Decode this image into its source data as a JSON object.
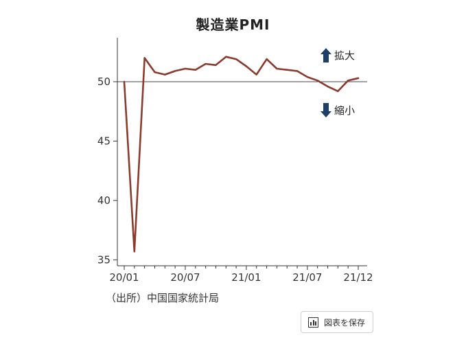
{
  "chart_data": {
    "type": "line",
    "title": "製造業PMI",
    "x": [
      "20/01",
      "20/02",
      "20/03",
      "20/04",
      "20/05",
      "20/06",
      "20/07",
      "20/08",
      "20/09",
      "20/10",
      "20/11",
      "20/12",
      "21/01",
      "21/02",
      "21/03",
      "21/04",
      "21/05",
      "21/06",
      "21/07",
      "21/08",
      "21/09",
      "21/10",
      "21/11",
      "21/12"
    ],
    "series": [
      {
        "values": [
          50.0,
          35.7,
          52.0,
          50.8,
          50.6,
          50.9,
          51.1,
          51.0,
          51.5,
          51.4,
          52.1,
          51.9,
          51.3,
          50.6,
          51.9,
          51.1,
          51.0,
          50.9,
          50.4,
          50.1,
          49.6,
          49.2,
          50.1,
          50.3
        ]
      }
    ],
    "x_tick_labels": [
      "20/01",
      "20/07",
      "21/01",
      "21/07",
      "21/12"
    ],
    "y_ticks": [
      35,
      40,
      45,
      50
    ],
    "ylim": [
      34.5,
      53.7
    ],
    "reference_line": 50,
    "xlabel": "",
    "ylabel": "",
    "grid": false,
    "line_color": "#8b3a2e",
    "annotations": {
      "up": "拡大",
      "down": "縮小",
      "arrow_color": "#1e3f66"
    }
  },
  "source": "（出所）中国国家統計局",
  "save_button": {
    "label": "図表を保存",
    "icon": "bar-chart-icon"
  }
}
